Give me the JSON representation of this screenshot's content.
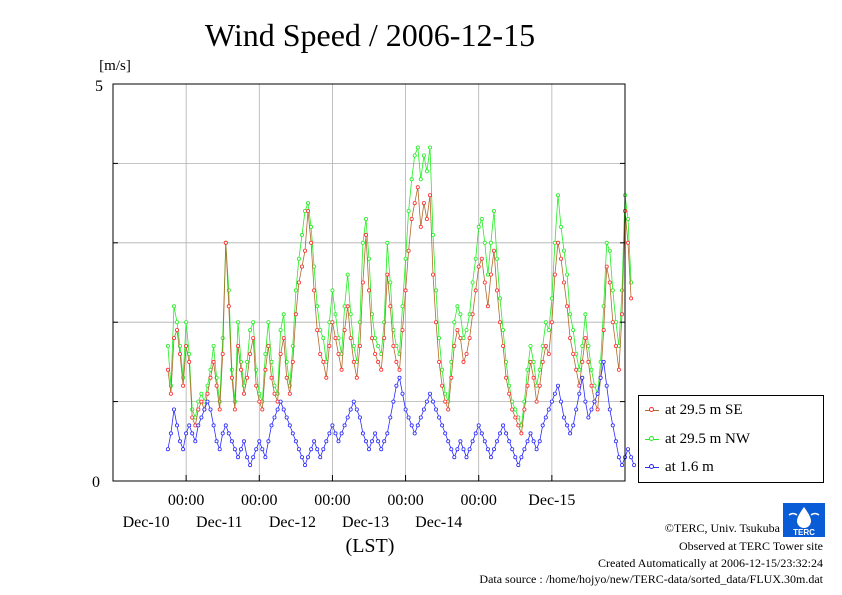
{
  "chart_data": {
    "type": "line",
    "title": "Wind Speed / 2006-12-15",
    "ylabel": "[m/s]",
    "xlabel": "(LST)",
    "ylim": [
      0,
      5
    ],
    "yticks": [
      "0",
      "5"
    ],
    "xlim": [
      "2006-12-09 00:00",
      "2006-12-16 00:00"
    ],
    "xticks": [
      {
        "time": "00:00",
        "date": "Dec-10"
      },
      {
        "time": "00:00",
        "date": "Dec-11"
      },
      {
        "time": "00:00",
        "date": "Dec-12"
      },
      {
        "time": "00:00",
        "date": "Dec-13"
      },
      {
        "time": "00:00",
        "date": "Dec-14"
      },
      {
        "time": "Dec-15",
        "date": ""
      }
    ],
    "grid": true,
    "legend_position": "right",
    "x_step_hours": 1,
    "x_start": "2006-12-09 18:00",
    "series": [
      {
        "name": "at 29.5 m SE",
        "color": "#ff2a2a",
        "values": [
          1.4,
          1.1,
          1.8,
          1.9,
          1.6,
          1.2,
          1.7,
          1.5,
          0.8,
          0.7,
          0.9,
          1.0,
          0.9,
          1.1,
          1.3,
          1.5,
          1.2,
          0.9,
          1.6,
          3.0,
          2.2,
          1.3,
          0.9,
          1.7,
          1.4,
          1.1,
          1.3,
          1.6,
          1.8,
          1.2,
          1.0,
          0.9,
          1.4,
          1.7,
          1.3,
          1.1,
          1.0,
          1.6,
          1.8,
          1.3,
          1.1,
          1.5,
          2.1,
          2.5,
          2.7,
          2.9,
          3.4,
          3.0,
          2.4,
          1.9,
          1.6,
          1.5,
          1.3,
          1.7,
          2.0,
          1.8,
          1.6,
          1.4,
          1.9,
          2.2,
          1.8,
          1.5,
          1.3,
          1.7,
          2.5,
          3.1,
          2.4,
          1.8,
          1.6,
          1.5,
          1.4,
          1.8,
          2.6,
          2.2,
          1.7,
          1.5,
          1.4,
          1.9,
          2.4,
          2.9,
          3.3,
          3.5,
          3.7,
          3.2,
          3.5,
          3.3,
          3.6,
          2.6,
          2.0,
          1.5,
          1.2,
          1.0,
          0.9,
          1.3,
          1.7,
          1.9,
          1.8,
          1.5,
          1.6,
          1.8,
          2.1,
          2.4,
          2.7,
          2.8,
          2.5,
          2.2,
          2.6,
          2.9,
          2.4,
          2.0,
          1.7,
          1.3,
          1.1,
          0.9,
          0.8,
          0.7,
          0.6,
          0.9,
          1.2,
          1.5,
          1.3,
          1.0,
          1.2,
          1.5,
          1.7,
          1.6,
          2.0,
          2.6,
          3.0,
          2.8,
          2.5,
          2.2,
          1.8,
          1.6,
          1.4,
          1.2,
          1.5,
          1.8,
          1.5,
          1.2,
          1.0,
          0.9,
          1.3,
          1.9,
          2.7,
          2.5,
          2.0,
          1.7,
          1.4,
          2.1,
          3.4,
          3.0,
          2.3
        ]
      },
      {
        "name": "at 29.5 m NW",
        "color": "#22ee22",
        "values": [
          1.7,
          1.2,
          2.2,
          2.0,
          1.7,
          1.3,
          2.0,
          1.6,
          0.9,
          0.8,
          1.0,
          1.1,
          1.0,
          1.2,
          1.4,
          1.7,
          1.3,
          1.0,
          1.8,
          3.0,
          2.4,
          1.4,
          1.0,
          2.0,
          1.5,
          1.2,
          1.5,
          1.9,
          2.0,
          1.4,
          1.1,
          1.0,
          1.6,
          2.0,
          1.5,
          1.2,
          1.1,
          1.9,
          2.1,
          1.5,
          1.2,
          1.7,
          2.4,
          2.8,
          3.1,
          3.4,
          3.5,
          3.2,
          2.7,
          2.2,
          1.9,
          1.8,
          1.5,
          2.0,
          2.4,
          2.1,
          1.8,
          1.6,
          2.2,
          2.6,
          2.1,
          1.7,
          1.5,
          2.0,
          3.0,
          3.3,
          2.8,
          2.1,
          1.8,
          1.7,
          1.6,
          2.0,
          3.0,
          2.5,
          1.9,
          1.7,
          1.6,
          2.2,
          2.8,
          3.4,
          3.8,
          4.1,
          4.2,
          3.8,
          4.1,
          3.9,
          4.2,
          3.1,
          2.4,
          1.8,
          1.4,
          1.1,
          1.0,
          1.5,
          2.0,
          2.2,
          2.1,
          1.8,
          1.9,
          2.1,
          2.5,
          2.8,
          3.2,
          3.3,
          3.0,
          2.6,
          3.0,
          3.4,
          2.8,
          2.3,
          1.9,
          1.5,
          1.2,
          1.0,
          0.9,
          0.8,
          0.7,
          1.0,
          1.4,
          1.7,
          1.5,
          1.2,
          1.4,
          1.7,
          2.0,
          1.9,
          2.3,
          3.0,
          3.6,
          3.2,
          2.9,
          2.6,
          2.1,
          1.9,
          1.6,
          1.4,
          1.7,
          2.1,
          1.7,
          1.4,
          1.2,
          1.1,
          1.5,
          2.2,
          3.0,
          2.9,
          2.4,
          2.0,
          1.7,
          2.4,
          3.6,
          3.3,
          2.5
        ]
      },
      {
        "name": "at 1.6 m",
        "color": "#2a2aff",
        "values": [
          0.4,
          0.6,
          0.9,
          0.7,
          0.5,
          0.4,
          0.6,
          0.7,
          0.6,
          0.5,
          0.7,
          0.8,
          0.9,
          1.0,
          0.9,
          0.7,
          0.5,
          0.4,
          0.6,
          0.7,
          0.6,
          0.5,
          0.4,
          0.3,
          0.4,
          0.5,
          0.3,
          0.2,
          0.3,
          0.4,
          0.5,
          0.4,
          0.3,
          0.5,
          0.7,
          0.8,
          0.9,
          1.0,
          0.9,
          0.8,
          0.7,
          0.6,
          0.5,
          0.4,
          0.3,
          0.2,
          0.3,
          0.4,
          0.5,
          0.4,
          0.3,
          0.4,
          0.5,
          0.6,
          0.7,
          0.6,
          0.5,
          0.6,
          0.7,
          0.8,
          0.9,
          1.0,
          0.9,
          0.8,
          0.6,
          0.5,
          0.4,
          0.5,
          0.6,
          0.5,
          0.4,
          0.5,
          0.6,
          0.8,
          1.0,
          1.2,
          1.3,
          1.1,
          0.9,
          0.8,
          0.7,
          0.6,
          0.7,
          0.8,
          0.9,
          1.0,
          1.1,
          1.0,
          0.9,
          0.8,
          0.7,
          0.6,
          0.5,
          0.4,
          0.3,
          0.4,
          0.5,
          0.4,
          0.3,
          0.4,
          0.5,
          0.6,
          0.7,
          0.6,
          0.5,
          0.4,
          0.3,
          0.4,
          0.5,
          0.6,
          0.7,
          0.6,
          0.5,
          0.4,
          0.3,
          0.2,
          0.3,
          0.4,
          0.5,
          0.6,
          0.5,
          0.4,
          0.5,
          0.7,
          0.8,
          0.9,
          1.0,
          1.1,
          1.2,
          1.0,
          0.8,
          0.7,
          0.6,
          0.7,
          0.9,
          1.1,
          1.3,
          1.0,
          0.8,
          0.9,
          1.0,
          1.1,
          1.3,
          1.5,
          1.2,
          0.9,
          0.7,
          0.5,
          0.3,
          0.2,
          0.3,
          0.4,
          0.3,
          0.2
        ]
      }
    ]
  },
  "credits": {
    "copyright": "©TERC, Univ. Tsukuba",
    "observed": "Observed at TERC Tower site",
    "created": "Created Automatically at 2006-12-15/23:32:24",
    "source": "Data source : /home/hojyo/new/TERC-data/sorted_data/FLUX.30m.dat"
  },
  "logo": {
    "text": "TERC",
    "color": "#0a5bd6"
  }
}
